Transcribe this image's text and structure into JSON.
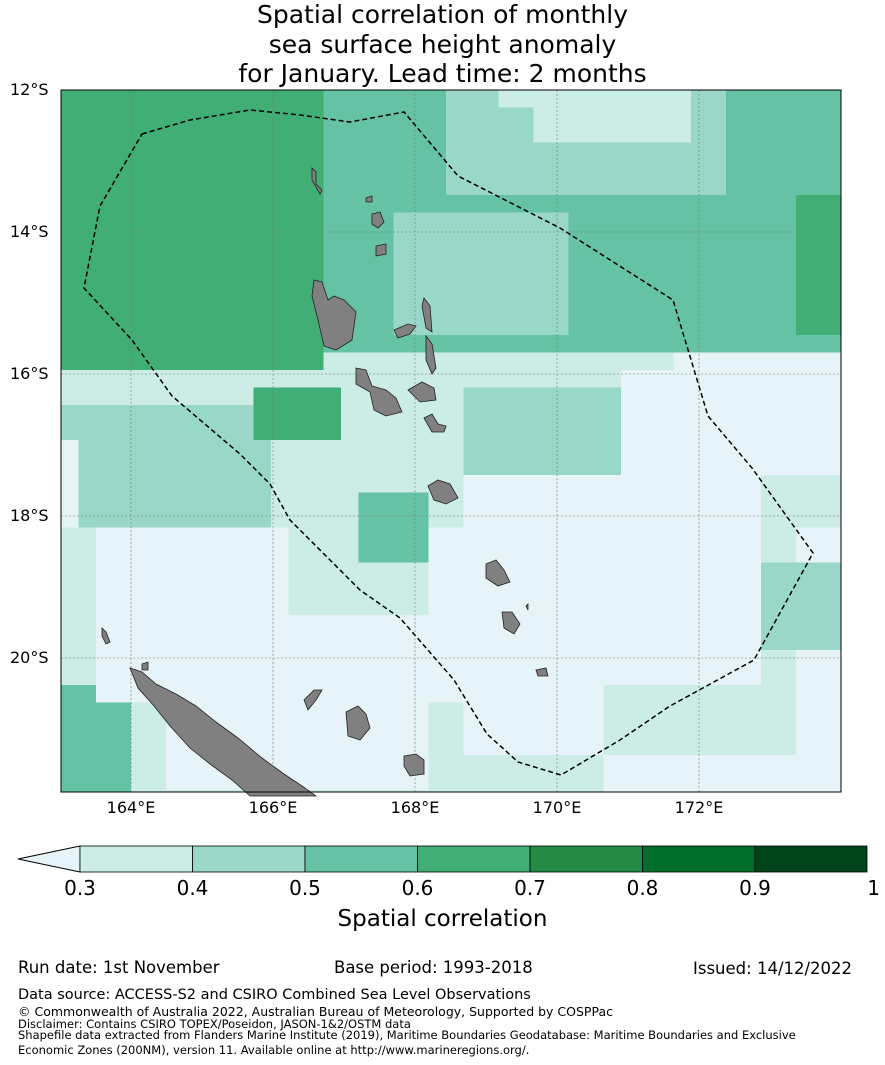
{
  "title": {
    "line1": "Spatial correlation of monthly",
    "line2": "sea surface height anomaly",
    "line3": "for January. Lead time: 2 months"
  },
  "map": {
    "lat_labels": [
      "12°S",
      "14°S",
      "16°S",
      "18°S",
      "20°S"
    ],
    "lon_labels": [
      "164°E",
      "166°E",
      "168°E",
      "170°E",
      "172°E"
    ],
    "extent": {
      "lon_min": 163.0,
      "lon_max": 174.0,
      "lat_min": -21.9,
      "lat_max": -12.0
    }
  },
  "colorbar": {
    "title": "Spatial correlation",
    "ticks": [
      "0.3",
      "0.4",
      "0.5",
      "0.6",
      "0.7",
      "0.8",
      "0.9",
      "1"
    ],
    "colors": {
      "below": "#e6f4f9",
      "c1": "#ccece6",
      "c2": "#99d8c9",
      "c3": "#66c2a4",
      "c4": "#41ae76",
      "c5": "#238b45",
      "c6": "#006d2c",
      "c7": "#00441b"
    }
  },
  "footer": {
    "run_date": "Run date: 1st November",
    "base_period": "Base period: 1993-2018",
    "issued": "Issued: 14/12/2022",
    "data_source": "Data source: ACCESS-S2 and CSIRO Combined Sea Level Observations",
    "copyright": "© Commonwealth of Australia 2022, Australian Bureau of Meteorology, Supported by COSPPac",
    "disclaimer": "Disclaimer: Contains CSIRO TOPEX/Poseidon, JASON-1&2/OSTM data",
    "shapefile1": "Shapefile data extracted from Flanders Marine Institute (2019), Maritime Boundaries Geodatabase: Maritime Boundaries and Exclusive",
    "shapefile2": "Economic Zones (200NM), version 11. Available online at http://www.marineregions.org/."
  }
}
